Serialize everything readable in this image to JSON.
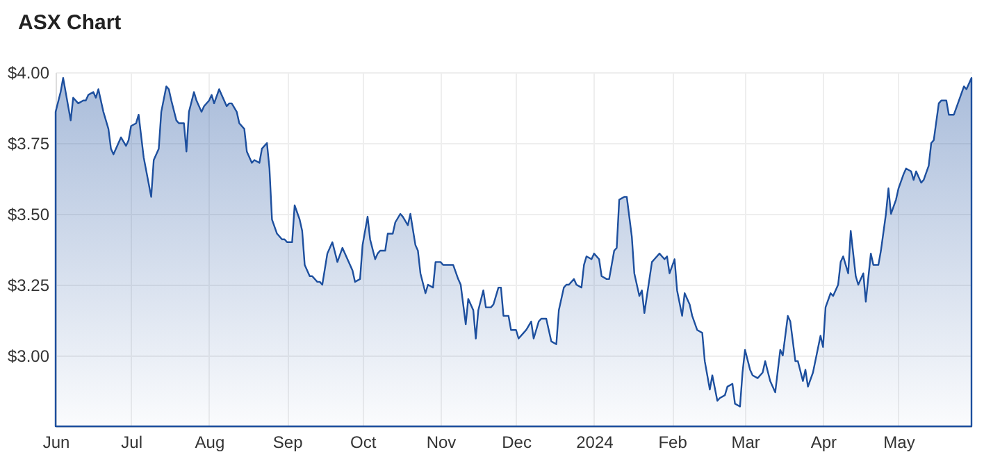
{
  "chart_data": {
    "type": "area",
    "title": "ASX Chart",
    "x": [
      "2023-06-01",
      "2023-06-03",
      "2023-06-04",
      "2023-06-07",
      "2023-06-08",
      "2023-06-10",
      "2023-06-12",
      "2023-06-13",
      "2023-06-14",
      "2023-06-16",
      "2023-06-17",
      "2023-06-18",
      "2023-06-20",
      "2023-06-22",
      "2023-06-23",
      "2023-06-24",
      "2023-06-27",
      "2023-06-29",
      "2023-06-30",
      "2023-07-01",
      "2023-07-03",
      "2023-07-04",
      "2023-07-06",
      "2023-07-09",
      "2023-07-10",
      "2023-07-12",
      "2023-07-13",
      "2023-07-15",
      "2023-07-16",
      "2023-07-17",
      "2023-07-19",
      "2023-07-20",
      "2023-07-22",
      "2023-07-23",
      "2023-07-24",
      "2023-07-26",
      "2023-07-27",
      "2023-07-29",
      "2023-07-30",
      "2023-08-01",
      "2023-08-02",
      "2023-08-03",
      "2023-08-05",
      "2023-08-06",
      "2023-08-08",
      "2023-08-09",
      "2023-08-10",
      "2023-08-12",
      "2023-08-13",
      "2023-08-15",
      "2023-08-16",
      "2023-08-18",
      "2023-08-19",
      "2023-08-21",
      "2023-08-22",
      "2023-08-24",
      "2023-08-25",
      "2023-08-26",
      "2023-08-28",
      "2023-08-30",
      "2023-08-31",
      "2023-09-01",
      "2023-09-03",
      "2023-09-04",
      "2023-09-06",
      "2023-09-07",
      "2023-09-08",
      "2023-09-10",
      "2023-09-11",
      "2023-09-13",
      "2023-09-14",
      "2023-09-15",
      "2023-09-17",
      "2023-09-19",
      "2023-09-21",
      "2023-09-23",
      "2023-09-25",
      "2023-09-27",
      "2023-09-28",
      "2023-09-30",
      "2023-10-01",
      "2023-10-03",
      "2023-10-04",
      "2023-10-06",
      "2023-10-07",
      "2023-10-08",
      "2023-10-10",
      "2023-10-11",
      "2023-10-13",
      "2023-10-14",
      "2023-10-16",
      "2023-10-17",
      "2023-10-19",
      "2023-10-20",
      "2023-10-22",
      "2023-10-23",
      "2023-10-24",
      "2023-10-26",
      "2023-10-27",
      "2023-10-29",
      "2023-10-30",
      "2023-11-01",
      "2023-11-02",
      "2023-11-06",
      "2023-11-08",
      "2023-11-09",
      "2023-11-11",
      "2023-11-12",
      "2023-11-14",
      "2023-11-15",
      "2023-11-16",
      "2023-11-18",
      "2023-11-19",
      "2023-11-21",
      "2023-11-22",
      "2023-11-24",
      "2023-11-25",
      "2023-11-26",
      "2023-11-28",
      "2023-11-29",
      "2023-12-01",
      "2023-12-02",
      "2023-12-04",
      "2023-12-05",
      "2023-12-07",
      "2023-12-08",
      "2023-12-10",
      "2023-12-11",
      "2023-12-13",
      "2023-12-14",
      "2023-12-15",
      "2023-12-17",
      "2023-12-18",
      "2023-12-20",
      "2023-12-21",
      "2023-12-22",
      "2023-12-24",
      "2023-12-25",
      "2023-12-27",
      "2023-12-28",
      "2023-12-29",
      "2023-12-31",
      "2024-01-01",
      "2024-01-03",
      "2024-01-04",
      "2024-01-06",
      "2024-01-07",
      "2024-01-09",
      "2024-01-10",
      "2024-01-11",
      "2024-01-13",
      "2024-01-14",
      "2024-01-16",
      "2024-01-17",
      "2024-01-19",
      "2024-01-20",
      "2024-01-21",
      "2024-01-23",
      "2024-01-24",
      "2024-01-25",
      "2024-01-27",
      "2024-01-28",
      "2024-01-29",
      "2024-01-30",
      "2024-01-31",
      "2024-02-02",
      "2024-02-03",
      "2024-02-05",
      "2024-02-06",
      "2024-02-08",
      "2024-02-09",
      "2024-02-11",
      "2024-02-13",
      "2024-02-14",
      "2024-02-15",
      "2024-02-16",
      "2024-02-17",
      "2024-02-19",
      "2024-02-20",
      "2024-02-22",
      "2024-02-23",
      "2024-02-25",
      "2024-02-26",
      "2024-02-28",
      "2024-02-29",
      "2024-03-01",
      "2024-03-03",
      "2024-03-04",
      "2024-03-06",
      "2024-03-08",
      "2024-03-09",
      "2024-03-11",
      "2024-03-13",
      "2024-03-15",
      "2024-03-16",
      "2024-03-18",
      "2024-03-19",
      "2024-03-21",
      "2024-03-22",
      "2024-03-24",
      "2024-03-25",
      "2024-03-26",
      "2024-03-28",
      "2024-03-31",
      "2024-04-01",
      "2024-04-02",
      "2024-04-04",
      "2024-04-05",
      "2024-04-07",
      "2024-04-08",
      "2024-04-09",
      "2024-04-11",
      "2024-04-12",
      "2024-04-14",
      "2024-04-15",
      "2024-04-17",
      "2024-04-18",
      "2024-04-20",
      "2024-04-21",
      "2024-04-23",
      "2024-04-24",
      "2024-04-26",
      "2024-04-27",
      "2024-04-28",
      "2024-04-30",
      "2024-05-01",
      "2024-05-03",
      "2024-05-04",
      "2024-05-06",
      "2024-05-07",
      "2024-05-08",
      "2024-05-10",
      "2024-05-11",
      "2024-05-13",
      "2024-05-14",
      "2024-05-15",
      "2024-05-17",
      "2024-05-18",
      "2024-05-20",
      "2024-05-21",
      "2024-05-23",
      "2024-05-25",
      "2024-05-27",
      "2024-05-28",
      "2024-05-30"
    ],
    "series": [
      {
        "color": "#1d4f9e",
        "values": [
          3.86,
          3.93,
          3.98,
          3.83,
          3.91,
          3.89,
          3.9,
          3.9,
          3.92,
          3.93,
          3.91,
          3.94,
          3.86,
          3.8,
          3.73,
          3.71,
          3.77,
          3.74,
          3.76,
          3.81,
          3.82,
          3.85,
          3.7,
          3.56,
          3.69,
          3.73,
          3.86,
          3.95,
          3.94,
          3.9,
          3.83,
          3.82,
          3.82,
          3.72,
          3.86,
          3.93,
          3.9,
          3.86,
          3.88,
          3.9,
          3.92,
          3.89,
          3.94,
          3.92,
          3.88,
          3.89,
          3.89,
          3.86,
          3.82,
          3.8,
          3.72,
          3.68,
          3.69,
          3.68,
          3.73,
          3.75,
          3.66,
          3.48,
          3.43,
          3.41,
          3.41,
          3.4,
          3.4,
          3.53,
          3.48,
          3.44,
          3.32,
          3.28,
          3.28,
          3.26,
          3.26,
          3.25,
          3.36,
          3.4,
          3.33,
          3.38,
          3.34,
          3.3,
          3.26,
          3.27,
          3.39,
          3.49,
          3.41,
          3.34,
          3.36,
          3.37,
          3.37,
          3.43,
          3.43,
          3.47,
          3.5,
          3.49,
          3.46,
          3.5,
          3.39,
          3.37,
          3.29,
          3.22,
          3.25,
          3.24,
          3.33,
          3.33,
          3.32,
          3.32,
          3.27,
          3.25,
          3.11,
          3.2,
          3.16,
          3.06,
          3.16,
          3.23,
          3.17,
          3.17,
          3.18,
          3.24,
          3.24,
          3.14,
          3.14,
          3.09,
          3.09,
          3.06,
          3.08,
          3.09,
          3.12,
          3.06,
          3.12,
          3.13,
          3.13,
          3.09,
          3.05,
          3.04,
          3.16,
          3.24,
          3.25,
          3.25,
          3.27,
          3.25,
          3.24,
          3.32,
          3.35,
          3.34,
          3.36,
          3.34,
          3.28,
          3.27,
          3.27,
          3.37,
          3.38,
          3.55,
          3.56,
          3.56,
          3.42,
          3.29,
          3.21,
          3.23,
          3.15,
          3.27,
          3.33,
          3.34,
          3.36,
          3.35,
          3.34,
          3.35,
          3.29,
          3.34,
          3.23,
          3.14,
          3.22,
          3.18,
          3.14,
          3.09,
          3.08,
          2.98,
          2.93,
          2.88,
          2.93,
          2.84,
          2.85,
          2.86,
          2.89,
          2.9,
          2.83,
          2.82,
          2.94,
          3.02,
          2.95,
          2.93,
          2.92,
          2.94,
          2.98,
          2.91,
          2.87,
          3.02,
          3.0,
          3.14,
          3.12,
          2.98,
          2.98,
          2.91,
          2.95,
          2.89,
          2.94,
          3.07,
          3.03,
          3.17,
          3.22,
          3.21,
          3.25,
          3.33,
          3.35,
          3.29,
          3.44,
          3.28,
          3.25,
          3.29,
          3.19,
          3.36,
          3.32,
          3.32,
          3.37,
          3.5,
          3.59,
          3.5,
          3.55,
          3.59,
          3.64,
          3.66,
          3.65,
          3.62,
          3.65,
          3.61,
          3.62,
          3.67,
          3.75,
          3.76,
          3.89,
          3.9,
          3.9,
          3.85,
          3.85,
          3.9,
          3.95,
          3.94,
          3.98
        ]
      }
    ],
    "xlim": [
      "2023-06-01",
      "2024-05-30"
    ],
    "xticks": [
      {
        "value": "2023-06-01",
        "label": "Jun"
      },
      {
        "value": "2023-07-01",
        "label": "Jul"
      },
      {
        "value": "2023-08-01",
        "label": "Aug"
      },
      {
        "value": "2023-09-01",
        "label": "Sep"
      },
      {
        "value": "2023-10-01",
        "label": "Oct"
      },
      {
        "value": "2023-11-01",
        "label": "Nov"
      },
      {
        "value": "2023-12-01",
        "label": "Dec"
      },
      {
        "value": "2024-01-01",
        "label": "2024"
      },
      {
        "value": "2024-02-01",
        "label": "Feb"
      },
      {
        "value": "2024-03-01",
        "label": "Mar"
      },
      {
        "value": "2024-04-01",
        "label": "Apr"
      },
      {
        "value": "2024-05-01",
        "label": "May"
      }
    ],
    "ylim": [
      2.75,
      4.0
    ],
    "yticks": [
      {
        "value": 3,
        "label": "$3.00"
      },
      {
        "value": 3.25,
        "label": "$3.25"
      },
      {
        "value": 3.5,
        "label": "$3.50"
      },
      {
        "value": 3.75,
        "label": "$3.75"
      },
      {
        "value": 4,
        "label": "$4.00"
      }
    ],
    "grid": true
  }
}
